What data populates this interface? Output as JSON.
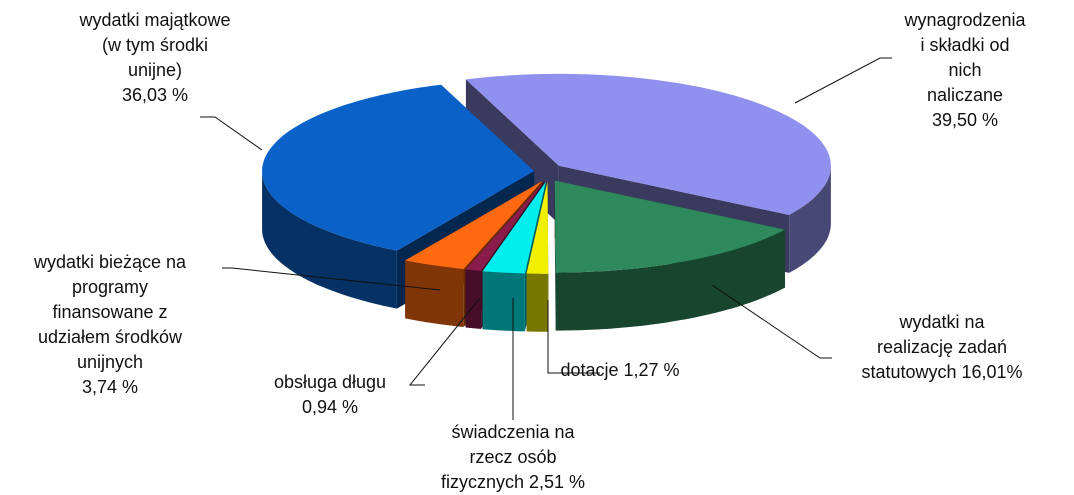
{
  "chart_data": {
    "type": "pie3d",
    "categories": [
      "wynagrodzenia\ni składki od nich\nnaliczane",
      "wydatki na\nrealizację zadań\nstatutowych",
      "dotacje",
      "świadczenia na\nrzecz osób\nfizycznych",
      "obsługa długu",
      "wydatki bieżące na\nprogramy\nfinansowane z\nudziałem środków\nunijnych",
      "wydatki majątkowe\n(w tym środki\nunijne)"
    ],
    "values": [
      39.5,
      16.01,
      1.27,
      2.51,
      0.94,
      3.74,
      36.03
    ],
    "value_labels": [
      "39,50 %",
      "16,01%",
      "1,27 %",
      "2,51 %",
      "0,94 %",
      "3,74 %",
      "36,03 %"
    ],
    "colors": [
      "#9090ee",
      "#2e8a5c",
      "#f0f000",
      "#00eeee",
      "#8a1c4c",
      "#ff6a10",
      "#0a62c8"
    ]
  }
}
